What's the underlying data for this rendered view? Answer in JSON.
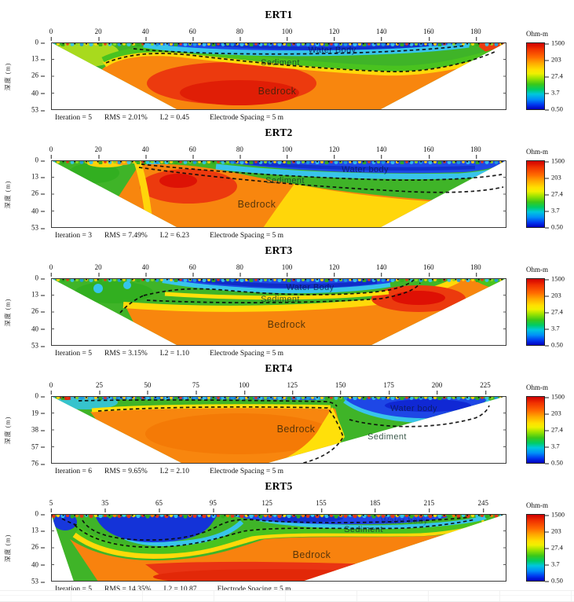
{
  "figure": {
    "ylabel": "深度 (m)",
    "colorbar": {
      "title": "Ohm-m",
      "ticks": [
        "1500",
        "203",
        "27.4",
        "3.7",
        "0.50"
      ]
    },
    "panels": [
      {
        "title": "ERT1",
        "x_ticks": [
          "0",
          "20",
          "40",
          "60",
          "80",
          "100",
          "120",
          "140",
          "160",
          "180"
        ],
        "x_range": [
          0,
          193
        ],
        "y_ticks": [
          "0",
          "13",
          "26",
          "40",
          "53"
        ],
        "y_range": [
          0,
          53
        ],
        "labels": {
          "water": "Water Body",
          "sediment": "Sediment",
          "bedrock": "Bedrock"
        },
        "stats": {
          "iteration": "Iteration = 5",
          "rms": "RMS = 2.01%",
          "l2": "L2 = 0.45",
          "spacing": "Electrode Spacing = 5 m"
        }
      },
      {
        "title": "ERT2",
        "x_ticks": [
          "0",
          "20",
          "40",
          "60",
          "80",
          "100",
          "120",
          "140",
          "160",
          "180"
        ],
        "x_range": [
          0,
          193
        ],
        "y_ticks": [
          "0",
          "13",
          "26",
          "40",
          "53"
        ],
        "y_range": [
          0,
          53
        ],
        "labels": {
          "water": "Water body",
          "sediment": "Sediment",
          "bedrock": "Bedrock"
        },
        "stats": {
          "iteration": "Iteration = 3",
          "rms": "RMS = 7.49%",
          "l2": "L2 = 6.23",
          "spacing": "Electrode Spacing = 5 m"
        }
      },
      {
        "title": "ERT3",
        "x_ticks": [
          "0",
          "20",
          "40",
          "60",
          "80",
          "100",
          "120",
          "140",
          "160",
          "180"
        ],
        "x_range": [
          0,
          193
        ],
        "y_ticks": [
          "0",
          "13",
          "26",
          "40",
          "53"
        ],
        "y_range": [
          0,
          53
        ],
        "labels": {
          "water": "Water Body",
          "sediment": "Sediment",
          "bedrock": "Bedrock"
        },
        "stats": {
          "iteration": "Iteration = 5",
          "rms": "RMS = 3.15%",
          "l2": "L2 = 1.10",
          "spacing": "Electrode Spacing = 5 m"
        }
      },
      {
        "title": "ERT4",
        "x_ticks": [
          "0",
          "25",
          "50",
          "75",
          "100",
          "125",
          "150",
          "175",
          "200",
          "225"
        ],
        "x_range": [
          0,
          236
        ],
        "y_ticks": [
          "0",
          "19",
          "38",
          "57",
          "76"
        ],
        "y_range": [
          0,
          76
        ],
        "labels": {
          "water": "Water body",
          "sediment": "Sediment",
          "bedrock": "Bedrock"
        },
        "stats": {
          "iteration": "Iteration = 6",
          "rms": "RMS = 9.65%",
          "l2": "L2 = 2.10",
          "spacing": "Electrode Spacing = 5 m"
        }
      },
      {
        "title": "ERT5",
        "x_ticks": [
          "5",
          "35",
          "65",
          "95",
          "125",
          "155",
          "185",
          "215",
          "245"
        ],
        "x_range": [
          5,
          258
        ],
        "y_ticks": [
          "0",
          "13",
          "26",
          "40",
          "53"
        ],
        "y_range": [
          0,
          53
        ],
        "labels": {
          "water": "Water body",
          "sediment": "Sediment",
          "bedrock": "Bedrock"
        },
        "stats": {
          "iteration": "Iteration = 5",
          "rms": "RMS = 14.35%",
          "l2": "L2 = 10.87",
          "spacing": "Electrode Spacing = 5 m"
        }
      }
    ]
  },
  "chart_data": [
    {
      "type": "heatmap",
      "title": "ERT1",
      "xlabel": "",
      "ylabel": "深度 (m)",
      "y_inverted": true,
      "x_ticks": [
        0,
        20,
        40,
        60,
        80,
        100,
        120,
        140,
        160,
        180
      ],
      "x_range": [
        0,
        193
      ],
      "y_ticks": [
        0,
        13,
        26,
        40,
        53
      ],
      "y_range": [
        0,
        53
      ],
      "colorbar": {
        "title": "Ohm-m",
        "scale": "log",
        "tick_values": [
          1500,
          203,
          27.4,
          3.7,
          0.5
        ],
        "range": [
          0.5,
          1500
        ]
      },
      "regions": [
        {
          "label": "Water Body",
          "character": "low resistivity blue lens",
          "extent": "x~35-180 m, depth 0-7 m"
        },
        {
          "label": "Sediment",
          "character": "green intermediate band",
          "extent": "x~20-180 m, depth ~5-20 m"
        },
        {
          "label": "Bedrock",
          "character": "orange-red high resistivity, red core x~45-110 m",
          "extent": "below ~15-20 m"
        }
      ],
      "stats": {
        "iteration": 5,
        "rms_percent": 2.01,
        "l2": 0.45,
        "electrode_spacing_m": 5
      }
    },
    {
      "type": "heatmap",
      "title": "ERT2",
      "xlabel": "",
      "ylabel": "深度 (m)",
      "y_inverted": true,
      "x_ticks": [
        0,
        20,
        40,
        60,
        80,
        100,
        120,
        140,
        160,
        180
      ],
      "x_range": [
        0,
        193
      ],
      "y_ticks": [
        0,
        13,
        26,
        40,
        53
      ],
      "y_range": [
        0,
        53
      ],
      "colorbar": {
        "title": "Ohm-m",
        "scale": "log",
        "tick_values": [
          1500,
          203,
          27.4,
          3.7,
          0.5
        ],
        "range": [
          0.5,
          1500
        ]
      },
      "regions": [
        {
          "label": "Water body",
          "character": "blue lens deepening rightward",
          "extent": "x~65-190 m, depth 0-12 m"
        },
        {
          "label": "Sediment",
          "character": "green band thickening toward right",
          "extent": "x~40-190 m"
        },
        {
          "label": "Bedrock",
          "character": "orange-red core x~40-100 m rising to ~5 m depth, yellow toward right",
          "extent": "lower left-center"
        }
      ],
      "stats": {
        "iteration": 3,
        "rms_percent": 7.49,
        "l2": 6.23,
        "electrode_spacing_m": 5
      }
    },
    {
      "type": "heatmap",
      "title": "ERT3",
      "xlabel": "",
      "ylabel": "深度 (m)",
      "y_inverted": true,
      "x_ticks": [
        0,
        20,
        40,
        60,
        80,
        100,
        120,
        140,
        160,
        180
      ],
      "x_range": [
        0,
        193
      ],
      "y_ticks": [
        0,
        13,
        26,
        40,
        53
      ],
      "y_range": [
        0,
        53
      ],
      "colorbar": {
        "title": "Ohm-m",
        "scale": "log",
        "tick_values": [
          1500,
          203,
          27.4,
          3.7,
          0.5
        ],
        "range": [
          0.5,
          1500
        ]
      },
      "regions": [
        {
          "label": "Water Body",
          "character": "blue lens",
          "extent": "x~47-143 m, depth 0-10 m"
        },
        {
          "label": "Sediment",
          "character": "thin green-yellow band under lens",
          "extent": "x~40-145 m, depth ~10-25 m"
        },
        {
          "label": "Bedrock",
          "character": "broad orange body, red patch x~145-165 m at 13-22 m depth",
          "extent": "below ~20 m"
        }
      ],
      "stats": {
        "iteration": 5,
        "rms_percent": 3.15,
        "l2": 1.1,
        "electrode_spacing_m": 5
      }
    },
    {
      "type": "heatmap",
      "title": "ERT4",
      "xlabel": "",
      "ylabel": "深度 (m)",
      "y_inverted": true,
      "x_ticks": [
        0,
        25,
        50,
        75,
        100,
        125,
        150,
        175,
        200,
        225
      ],
      "x_range": [
        0,
        236
      ],
      "y_ticks": [
        0,
        19,
        38,
        57,
        76
      ],
      "y_range": [
        0,
        76
      ],
      "colorbar": {
        "title": "Ohm-m",
        "scale": "log",
        "tick_values": [
          1500,
          203,
          27.4,
          3.7,
          0.5
        ],
        "range": [
          0.5,
          1500
        ]
      },
      "regions": [
        {
          "label": "Water body",
          "character": "blue basin right of step",
          "extent": "x~150-225 m, depth 0-25 m"
        },
        {
          "label": "Sediment",
          "character": "green wedge below water body",
          "extent": "x~150-215 m, depth ~25-55 m"
        },
        {
          "label": "Bedrock",
          "character": "orange body left of steep step at x~150 m",
          "extent": "x~25-150 m, below ~12 m"
        }
      ],
      "stats": {
        "iteration": 6,
        "rms_percent": 9.65,
        "l2": 2.1,
        "electrode_spacing_m": 5
      }
    },
    {
      "type": "heatmap",
      "title": "ERT5",
      "xlabel": "",
      "ylabel": "深度 (m)",
      "y_inverted": true,
      "x_ticks": [
        5,
        35,
        65,
        95,
        125,
        155,
        185,
        215,
        245
      ],
      "x_range": [
        5,
        258
      ],
      "y_ticks": [
        0,
        13,
        26,
        40,
        53
      ],
      "y_range": [
        0,
        53
      ],
      "colorbar": {
        "title": "Ohm-m",
        "scale": "log",
        "tick_values": [
          1500,
          203,
          27.4,
          3.7,
          0.5
        ],
        "range": [
          0.5,
          1500
        ]
      },
      "regions": [
        {
          "label": "Water body",
          "character": "two blue zones: deep pocket x~30-95 m (to ~20 m) and shallow band x~105-230 m",
          "extent": "upper section"
        },
        {
          "label": "Sediment",
          "character": "green band dipping to ~30 m at x~70 m",
          "extent": "across section"
        },
        {
          "label": "Bedrock",
          "character": "orange with red base, mottled red surface spikes",
          "extent": "below ~20-30 m"
        }
      ],
      "stats": {
        "iteration": 5,
        "rms_percent": 14.35,
        "l2": 10.87,
        "electrode_spacing_m": 5
      }
    }
  ]
}
